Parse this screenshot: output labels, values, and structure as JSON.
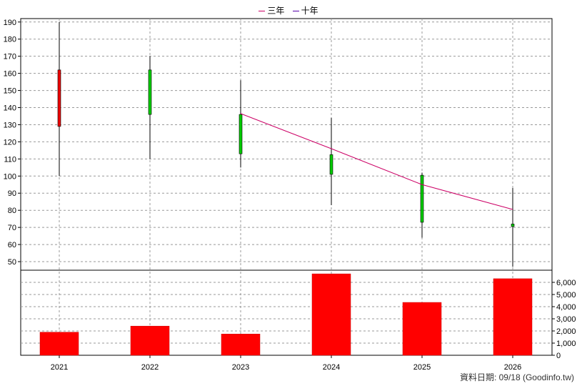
{
  "legend": {
    "items": [
      {
        "name": "三年",
        "color": "#cc0066"
      },
      {
        "name": "十年",
        "color": "#5500aa"
      }
    ]
  },
  "source_text": "資料日期: 09/18  (Goodinfo.tw)",
  "colors": {
    "up": "#ee0000",
    "down": "#00cc00",
    "volume": "#ff0000",
    "grid": "#999999"
  },
  "chart_data": {
    "type": "candlestick+bar",
    "categories": [
      "2021",
      "2022",
      "2023",
      "2024",
      "2025",
      "2026"
    ],
    "price": {
      "ylim": [
        45,
        192
      ],
      "yticks": [
        50,
        60,
        70,
        80,
        90,
        100,
        110,
        120,
        130,
        140,
        150,
        160,
        170,
        180,
        190
      ],
      "candles": [
        {
          "open": 129,
          "close": 162,
          "high": 190,
          "low": 100
        },
        {
          "open": 162,
          "close": 136,
          "high": 170,
          "low": 110
        },
        {
          "open": 136,
          "close": 113,
          "high": 156,
          "low": 105
        },
        {
          "open": 112.5,
          "close": 101,
          "high": 134,
          "low": 83
        },
        {
          "open": 100.5,
          "close": 73,
          "high": 102,
          "low": 64
        },
        {
          "open": 72,
          "close": 70.5,
          "high": 93,
          "low": 47
        }
      ]
    },
    "three_year_line": {
      "name": "三年",
      "points": [
        {
          "x": "2023",
          "y": 136.5
        },
        {
          "x": "2024",
          "y": 116
        },
        {
          "x": "2025",
          "y": 95
        },
        {
          "x": "2026",
          "y": 80.5
        }
      ]
    },
    "volume": {
      "ylim": [
        0,
        7000
      ],
      "yticks": [
        0,
        1000,
        2000,
        3000,
        4000,
        5000,
        6000
      ],
      "ytick_labels": [
        "0",
        "1,000",
        "2,000",
        "3,000",
        "4,000",
        "5,000",
        "6,000"
      ],
      "values": [
        1900,
        2400,
        1750,
        6700,
        4350,
        6300
      ]
    },
    "grid": true
  }
}
